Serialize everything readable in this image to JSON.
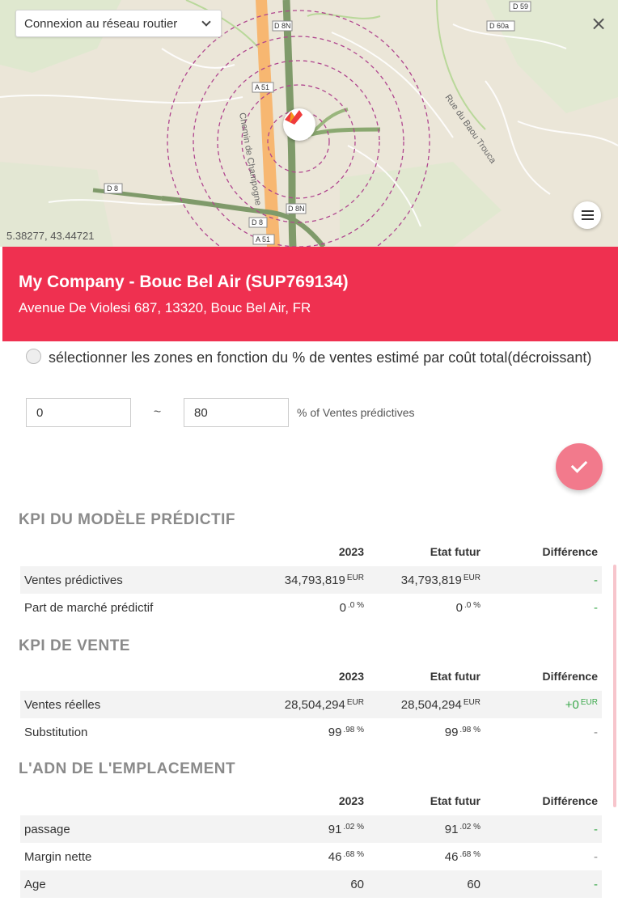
{
  "map": {
    "network_select": "Connexion au réseau routier",
    "coords": "5.38277, 43.44721",
    "road_labels": [
      "D 59",
      "D 60a",
      "D 8N",
      "A 51",
      "D 8",
      "D 8N",
      "D 8",
      "A 51"
    ],
    "street_labels": [
      "Rue du Baou Trouca",
      "Chemin de Champogne"
    ]
  },
  "header": {
    "title": "My Company - Bouc Bel Air (SUP769134)",
    "address": "Avenue De Violesi 687, 13320, Bouc Bel Air, FR",
    "color": "#ef3050"
  },
  "filter": {
    "radio_label": "sélectionner les zones en fonction du % de ventes estimé par coût total(décroissant)",
    "min_value": "0",
    "max_value": "80",
    "tilde": "~",
    "unit": "% of Ventes prédictives"
  },
  "columns": {
    "c2023": "2023",
    "future": "Etat futur",
    "diff": "Différence"
  },
  "sections": [
    {
      "title": "KPI DU MODÈLE PRÉDICTIF",
      "rows": [
        {
          "label": "Ventes prédictives",
          "v2023": "34,793,819",
          "v2023_sup": "EUR",
          "future": "34,793,819",
          "future_sup": "EUR",
          "diff": "-"
        },
        {
          "label": "Part de marché prédictif",
          "v2023": "0",
          "v2023_sup": ".0 %",
          "future": "0",
          "future_sup": ".0 %",
          "diff": "-"
        }
      ]
    },
    {
      "title": "KPI DE VENTE",
      "rows": [
        {
          "label": "Ventes réelles",
          "v2023": "28,504,294",
          "v2023_sup": "EUR",
          "future": "28,504,294",
          "future_sup": "EUR",
          "diff": "+0",
          "diff_sup": "EUR"
        },
        {
          "label": "Substitution",
          "v2023": "99",
          "v2023_sup": ".98 %",
          "future": "99",
          "future_sup": ".98 %",
          "diff": "-"
        }
      ]
    },
    {
      "title": "L'ADN DE L'EMPLACEMENT",
      "rows": [
        {
          "label": "passage",
          "v2023": "91",
          "v2023_sup": ".02 %",
          "future": "91",
          "future_sup": ".02 %",
          "diff": "-"
        },
        {
          "label": "Margin nette",
          "v2023": "46",
          "v2023_sup": ".68 %",
          "future": "46",
          "future_sup": ".68 %",
          "diff": "-"
        },
        {
          "label": "Age",
          "v2023": "60",
          "future": "60",
          "diff": "-"
        }
      ]
    }
  ]
}
